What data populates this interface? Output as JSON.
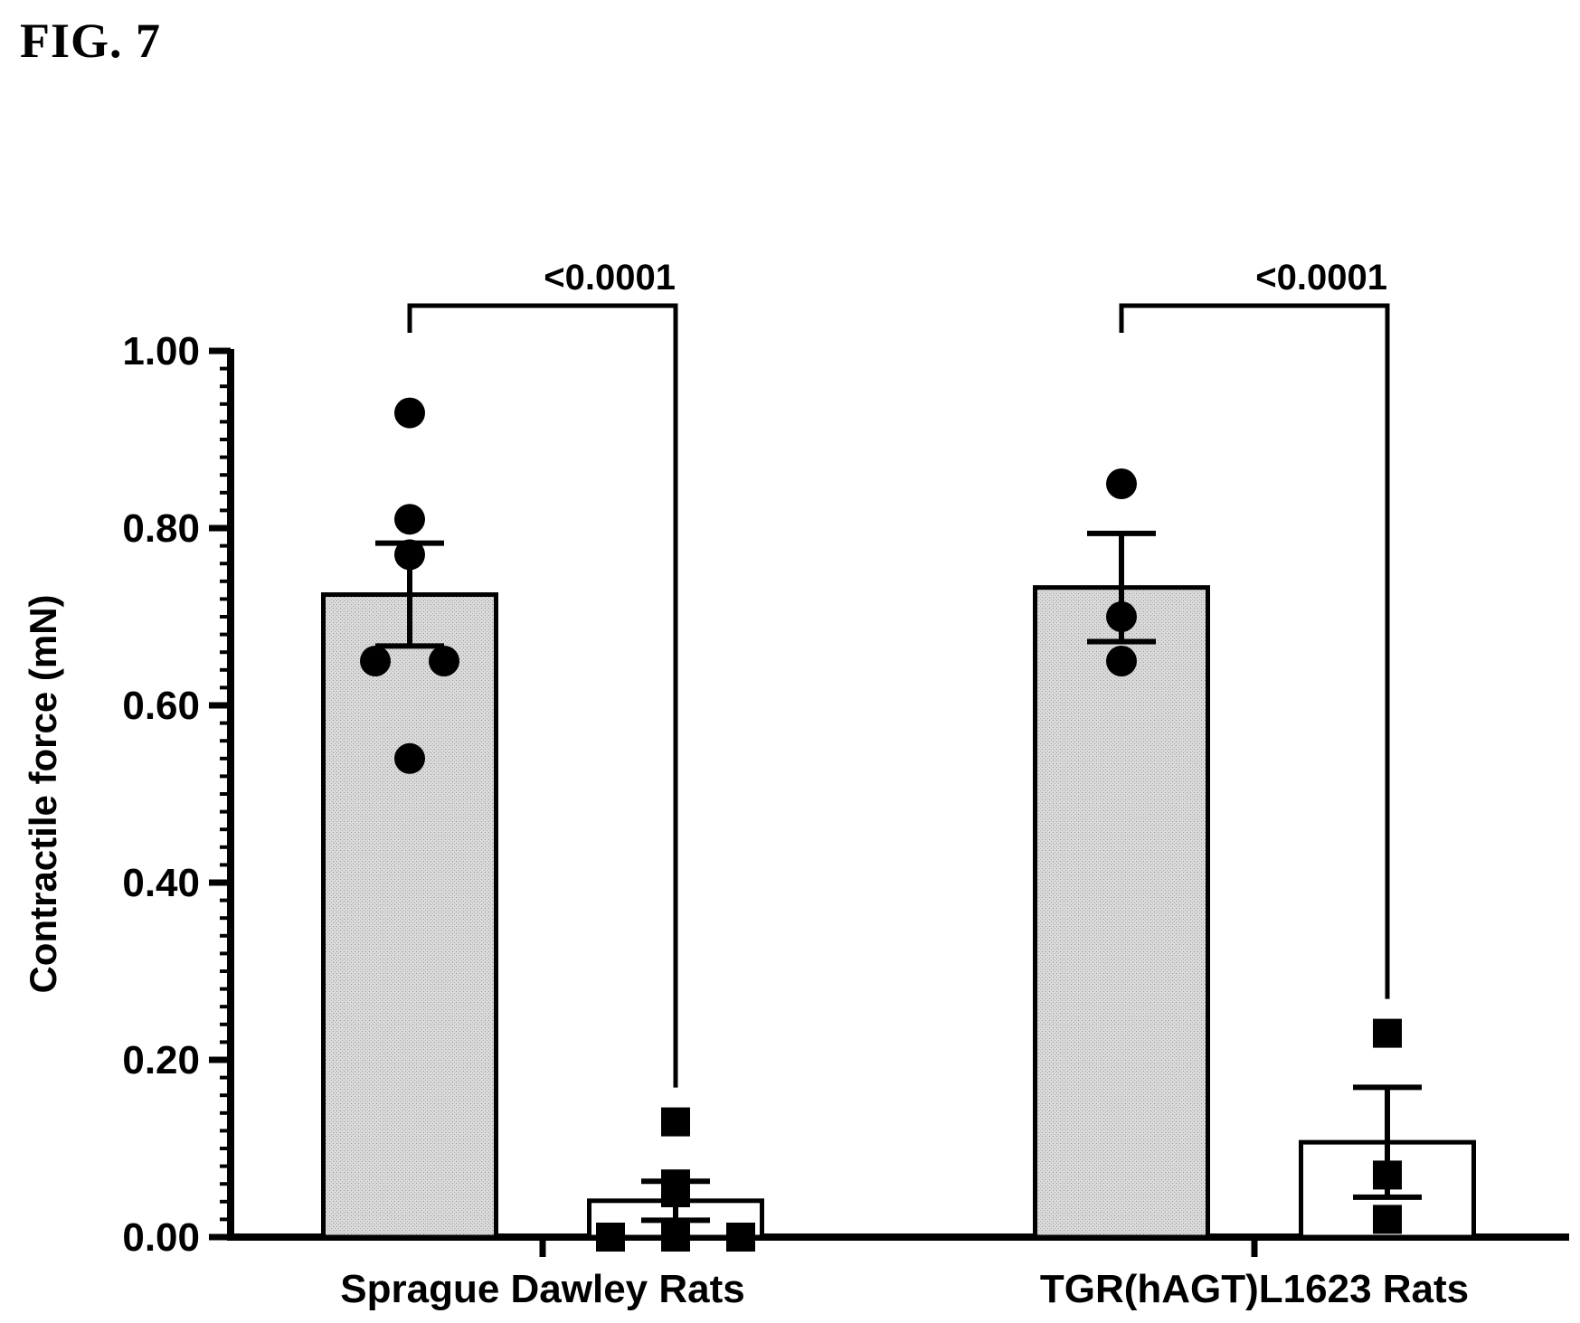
{
  "figure_label": "FIG. 7",
  "colors": {
    "ink": "#000000",
    "bar_fill_control": "#d4d4d4",
    "bar_fill_treated": "#ffffff"
  },
  "chart_data": {
    "type": "bar",
    "title": "",
    "xlabel": "",
    "ylabel": "Contractile force (mN)",
    "ylim": [
      0,
      1.0
    ],
    "y_ticks": [
      "0.00",
      "0.20",
      "0.40",
      "0.60",
      "0.80",
      "1.00"
    ],
    "y_tick_values": [
      0,
      0.2,
      0.4,
      0.6,
      0.8,
      1.0
    ],
    "categories": [
      "Sprague Dawley Rats",
      "TGR(hAGT)L1623 Rats"
    ],
    "series": [
      {
        "fill": "#d4d4d4",
        "marker": "circle",
        "values": [
          0.725,
          0.733
        ],
        "sem": [
          0.058,
          0.061
        ],
        "points": [
          [
            0.93,
            0.81,
            0.77,
            0.65,
            0.65,
            0.54
          ],
          [
            0.85,
            0.7,
            0.65
          ]
        ]
      },
      {
        "fill": "#ffffff",
        "marker": "square",
        "values": [
          0.041,
          0.107
        ],
        "sem": [
          0.022,
          0.062
        ],
        "points": [
          [
            0.13,
            0.06,
            0.05,
            0.0,
            0.0,
            0.0
          ],
          [
            0.23,
            0.07,
            0.02
          ]
        ]
      }
    ],
    "comparisons": [
      {
        "category": 0,
        "label": "<0.0001"
      },
      {
        "category": 1,
        "label": "<0.0001"
      }
    ],
    "grid": false,
    "legend": "none"
  }
}
